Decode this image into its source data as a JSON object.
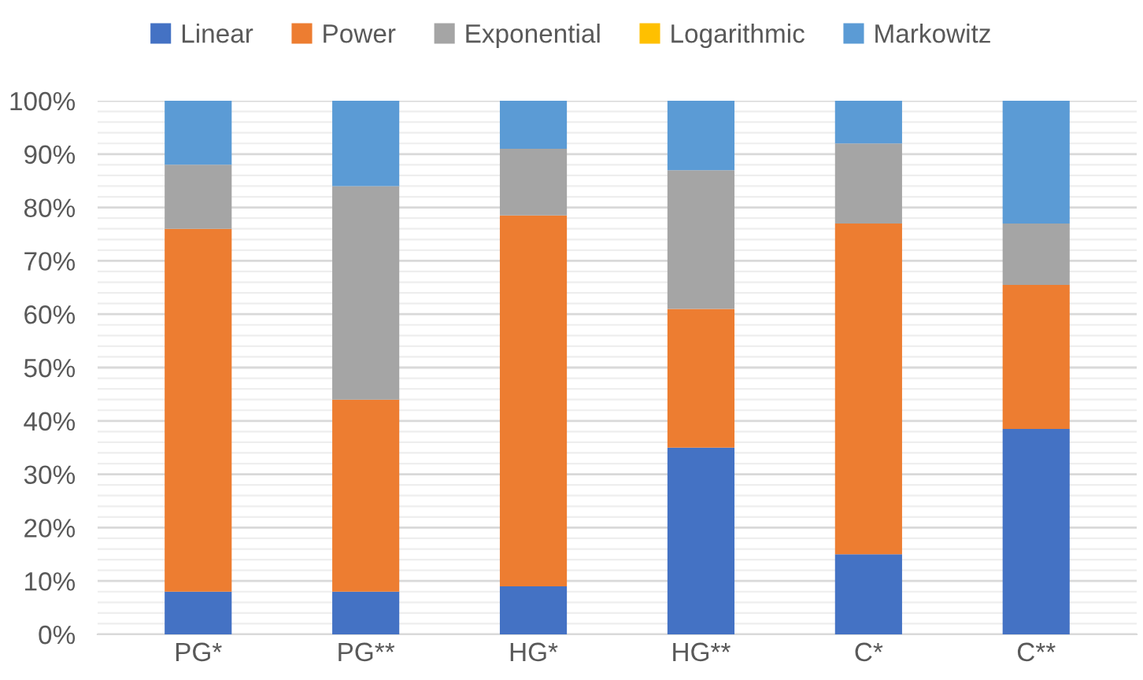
{
  "chart_data": {
    "type": "bar",
    "stacked": true,
    "categories": [
      "PG*",
      "PG**",
      "HG*",
      "HG**",
      "C*",
      "C**"
    ],
    "series": [
      {
        "name": "Linear",
        "color": "#4472c4",
        "values": [
          8,
          8,
          9,
          35,
          15,
          38.5
        ]
      },
      {
        "name": "Power",
        "color": "#ed7d31",
        "values": [
          68,
          36,
          69.5,
          26,
          62,
          27
        ]
      },
      {
        "name": "Exponential",
        "color": "#a5a5a5",
        "values": [
          12,
          40,
          12.5,
          26,
          15,
          11.5
        ]
      },
      {
        "name": "Logarithmic",
        "color": "#ffc000",
        "values": [
          0,
          0,
          0,
          0,
          0,
          0
        ]
      },
      {
        "name": "Markowitz",
        "color": "#5b9bd5",
        "values": [
          12,
          16,
          9,
          13,
          8,
          23
        ]
      }
    ],
    "ylim": [
      0,
      100
    ],
    "yticks": [
      {
        "value": 0,
        "label": "0%"
      },
      {
        "value": 2,
        "label": null
      },
      {
        "value": 4,
        "label": null
      },
      {
        "value": 6,
        "label": null
      },
      {
        "value": 8,
        "label": null
      },
      {
        "value": 10,
        "label": "10%"
      },
      {
        "value": 12,
        "label": null
      },
      {
        "value": 14,
        "label": null
      },
      {
        "value": 16,
        "label": null
      },
      {
        "value": 18,
        "label": null
      },
      {
        "value": 20,
        "label": "20%"
      },
      {
        "value": 22,
        "label": null
      },
      {
        "value": 24,
        "label": null
      },
      {
        "value": 26,
        "label": null
      },
      {
        "value": 28,
        "label": null
      },
      {
        "value": 30,
        "label": "30%"
      },
      {
        "value": 32,
        "label": null
      },
      {
        "value": 34,
        "label": null
      },
      {
        "value": 36,
        "label": null
      },
      {
        "value": 38,
        "label": null
      },
      {
        "value": 40,
        "label": "40%"
      },
      {
        "value": 42,
        "label": null
      },
      {
        "value": 44,
        "label": null
      },
      {
        "value": 46,
        "label": null
      },
      {
        "value": 48,
        "label": null
      },
      {
        "value": 50,
        "label": "50%"
      },
      {
        "value": 52,
        "label": null
      },
      {
        "value": 54,
        "label": null
      },
      {
        "value": 56,
        "label": null
      },
      {
        "value": 58,
        "label": null
      },
      {
        "value": 60,
        "label": "60%"
      },
      {
        "value": 62,
        "label": null
      },
      {
        "value": 64,
        "label": null
      },
      {
        "value": 66,
        "label": null
      },
      {
        "value": 68,
        "label": null
      },
      {
        "value": 70,
        "label": "70%"
      },
      {
        "value": 72,
        "label": null
      },
      {
        "value": 74,
        "label": null
      },
      {
        "value": 76,
        "label": null
      },
      {
        "value": 78,
        "label": null
      },
      {
        "value": 80,
        "label": "80%"
      },
      {
        "value": 82,
        "label": null
      },
      {
        "value": 84,
        "label": null
      },
      {
        "value": 86,
        "label": null
      },
      {
        "value": 88,
        "label": null
      },
      {
        "value": 90,
        "label": "90%"
      },
      {
        "value": 92,
        "label": null
      },
      {
        "value": 94,
        "label": null
      },
      {
        "value": 96,
        "label": null
      },
      {
        "value": 98,
        "label": null
      },
      {
        "value": 100,
        "label": "100%"
      }
    ],
    "grid": "y",
    "legend": "top"
  }
}
